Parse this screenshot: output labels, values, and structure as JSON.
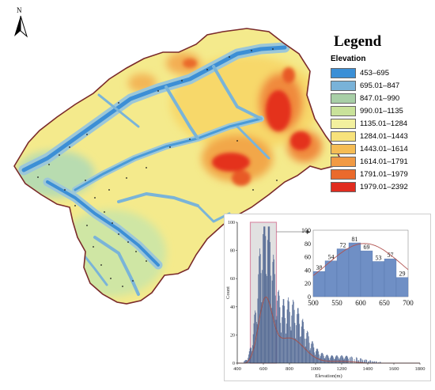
{
  "map": {
    "north_label": "N",
    "legend_title": "Legend",
    "legend_subtitle": "Elevation",
    "legend": [
      {
        "label": "453–695",
        "color": "#3b8fd6"
      },
      {
        "label": "695.01–847",
        "color": "#79b2d8"
      },
      {
        "label": "847.01–990",
        "color": "#a8cfa7"
      },
      {
        "label": "990.01–1135",
        "color": "#c9e29a"
      },
      {
        "label": "1135.01–1284",
        "color": "#f2f09e"
      },
      {
        "label": "1284.01–1443",
        "color": "#f7e27b"
      },
      {
        "label": "1443.01–1614",
        "color": "#f5bc54"
      },
      {
        "label": "1614.01–1791",
        "color": "#f19a44"
      },
      {
        "label": "1791.01–1979",
        "color": "#ea6a2c"
      },
      {
        "label": "1979.01–2392",
        "color": "#e12c1f"
      }
    ],
    "boundary_color": "#7a2a2a"
  },
  "chart_data": [
    {
      "type": "bar",
      "xlabel": "Elevation(m)",
      "ylabel": "Count",
      "xlim": [
        400,
        1800
      ],
      "ylim": [
        0,
        100
      ],
      "x_ticks": [
        400,
        600,
        800,
        1000,
        1200,
        1400,
        1600,
        1800
      ],
      "y_ticks": [
        0,
        20,
        40,
        60,
        80,
        100
      ],
      "highlight_range": [
        500,
        700
      ],
      "bar_color": "#4a628f",
      "curve_color": "#a0524d"
    },
    {
      "type": "bar",
      "categories": [
        525,
        550,
        575,
        600,
        625,
        650,
        675,
        700
      ],
      "values": [
        38,
        54,
        72,
        81,
        69,
        53,
        57,
        29
      ],
      "xlim": [
        500,
        700
      ],
      "ylim": [
        0,
        100
      ],
      "x_ticks": [
        500,
        550,
        600,
        650,
        700
      ],
      "y_ticks": [
        0,
        20,
        40,
        60,
        80,
        100
      ],
      "bar_color": "#6f8fc5"
    }
  ]
}
